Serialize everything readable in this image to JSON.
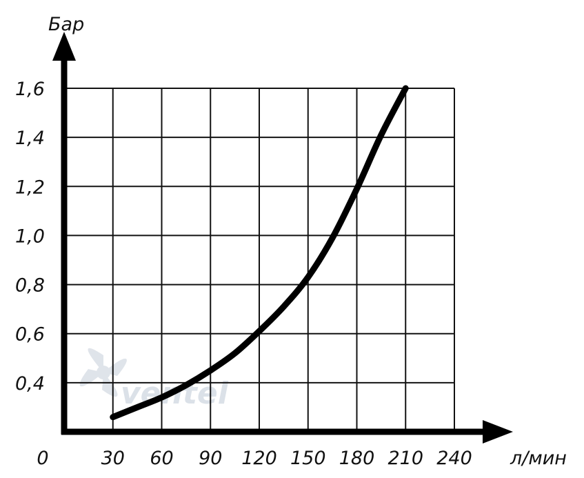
{
  "chart_data": {
    "type": "line",
    "title": "",
    "xlabel": "л/мин",
    "ylabel": "Бар",
    "x_ticks": [
      "0",
      "30",
      "60",
      "90",
      "120",
      "150",
      "180",
      "210",
      "240"
    ],
    "y_ticks": [
      "0,4",
      "0,6",
      "0,8",
      "1,0",
      "1,2",
      "1,4",
      "1,6"
    ],
    "xlim": [
      0,
      240
    ],
    "ylim": [
      0.2,
      1.6
    ],
    "grid": true,
    "legend": "none",
    "series": [
      {
        "x": [
          30,
          45,
          60,
          75,
          90,
          105,
          120,
          135,
          150,
          165,
          180,
          195,
          210
        ],
        "y": [
          0.26,
          0.3,
          0.34,
          0.39,
          0.45,
          0.52,
          0.61,
          0.71,
          0.83,
          0.99,
          1.19,
          1.41,
          1.6
        ]
      }
    ],
    "watermark": "ventel",
    "colors": {
      "axis": "#000000",
      "grid": "#111111",
      "curve": "#000000",
      "watermark": "#bfc9d6"
    }
  }
}
